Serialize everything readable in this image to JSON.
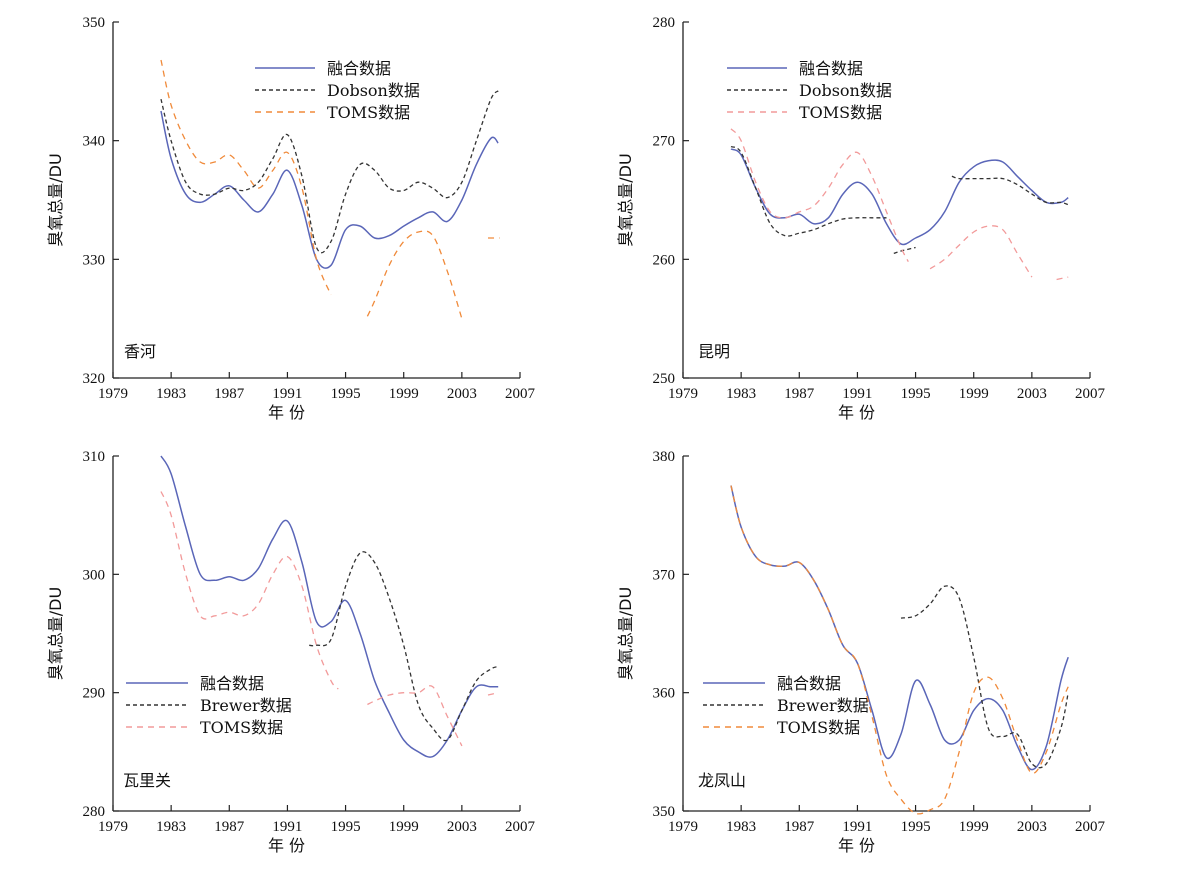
{
  "chart_data": [
    {
      "type": "line",
      "station": "香河",
      "xlabel": "年 份",
      "ylabel": "臭氧总量/DU",
      "xlim": [
        1979,
        2007
      ],
      "ylim": [
        320,
        350
      ],
      "xticks": [
        "1979",
        "1983",
        "1987",
        "1991",
        "1995",
        "1999",
        "2003",
        "2007"
      ],
      "yticks": [
        "320",
        "330",
        "340",
        "350"
      ],
      "legend_position": "top-center",
      "series": [
        {
          "name": "融合数据",
          "color": "#5a66b8",
          "dash": "",
          "x": [
            1982.3,
            1983,
            1984,
            1985,
            1986,
            1987,
            1988,
            1989,
            1990,
            1991,
            1992,
            1993,
            1994,
            1995,
            1996,
            1997,
            1998,
            1999,
            2000,
            2001,
            2002,
            2003,
            2004,
            2005,
            2005.5
          ],
          "y": [
            342.5,
            338.5,
            335.5,
            334.8,
            335.5,
            336.2,
            335,
            334,
            335.5,
            337.5,
            334.5,
            330,
            329.5,
            332.5,
            332.8,
            331.8,
            332,
            332.8,
            333.5,
            334,
            333.2,
            335,
            338,
            340.2,
            339.8
          ]
        },
        {
          "name": "Dobson数据",
          "color": "#333333",
          "dash": "4,3",
          "x": [
            1982.3,
            1983,
            1984,
            1985,
            1986,
            1987,
            1988,
            1989,
            1990,
            1991,
            1992,
            1993,
            1994,
            1995,
            1996,
            1997,
            1998,
            1999,
            2000,
            2001,
            2002,
            2003,
            2004,
            2005,
            2005.5
          ],
          "y": [
            343.5,
            340,
            336.5,
            335.5,
            335.5,
            336,
            335.8,
            336.5,
            338.5,
            340.5,
            337,
            331,
            331.5,
            335.5,
            338,
            337.5,
            336,
            335.8,
            336.5,
            336,
            335.2,
            336.5,
            340,
            343.5,
            344.2
          ]
        },
        {
          "name": "TOMS数据",
          "color": "#f08a3a",
          "dash": "6,5",
          "segments": [
            {
              "x": [
                1982.3,
                1983,
                1984,
                1985,
                1986,
                1987,
                1988,
                1989,
                1990,
                1991,
                1992,
                1993,
                1994
              ],
              "y": [
                346.8,
                343,
                340,
                338.2,
                338.2,
                338.8,
                337.5,
                336,
                337.5,
                339,
                336,
                330,
                327
              ]
            },
            {
              "x": [
                1996.5,
                1997,
                1998,
                1999,
                2000,
                2001,
                2002,
                2003
              ],
              "y": [
                325.2,
                326.5,
                329.5,
                331.5,
                332.3,
                332,
                329,
                325
              ]
            },
            {
              "x": [
                2004.8,
                2005.6
              ],
              "y": [
                331.8,
                331.8
              ]
            }
          ]
        }
      ]
    },
    {
      "type": "line",
      "station": "昆明",
      "xlabel": "年 份",
      "ylabel": "臭氧总量/DU",
      "xlim": [
        1979,
        2007
      ],
      "ylim": [
        250,
        280
      ],
      "xticks": [
        "1979",
        "1983",
        "1987",
        "1991",
        "1995",
        "1999",
        "2003",
        "2007"
      ],
      "yticks": [
        "250",
        "260",
        "270",
        "280"
      ],
      "legend_position": "top-center",
      "series": [
        {
          "name": "融合数据",
          "color": "#5a66b8",
          "dash": "",
          "x": [
            1982.3,
            1983,
            1984,
            1985,
            1986,
            1987,
            1988,
            1989,
            1990,
            1991,
            1992,
            1993,
            1994,
            1995,
            1996,
            1997,
            1998,
            1999,
            2000,
            2001,
            2002,
            2003,
            2004,
            2005,
            2005.5
          ],
          "y": [
            269.3,
            268.8,
            266,
            263.8,
            263.5,
            263.8,
            263,
            263.5,
            265.5,
            266.5,
            265.5,
            263,
            261.3,
            261.8,
            262.5,
            264,
            266.5,
            267.8,
            268.3,
            268.2,
            267,
            265.8,
            264.8,
            264.8,
            265.2
          ]
        },
        {
          "name": "Dobson数据",
          "color": "#333333",
          "dash": "4,3",
          "segments": [
            {
              "x": [
                1982.3,
                1983,
                1984,
                1985,
                1986,
                1987,
                1988,
                1989,
                1990,
                1991,
                1992,
                1993
              ],
              "y": [
                269.5,
                269,
                266,
                263,
                262,
                262.2,
                262.5,
                263,
                263.4,
                263.5,
                263.5,
                263.5
              ]
            },
            {
              "x": [
                1993.5,
                1994,
                1995
              ],
              "y": [
                260.5,
                260.7,
                261
              ]
            },
            {
              "x": [
                1997.5,
                1998,
                1999,
                2000,
                2001,
                2002,
                2003,
                2004,
                2005,
                2005.5
              ],
              "y": [
                267,
                266.8,
                266.8,
                266.8,
                266.8,
                266.3,
                265.5,
                264.8,
                264.8,
                264.6
              ]
            }
          ]
        },
        {
          "name": "TOMS数据",
          "color": "#f29a9a",
          "dash": "6,5",
          "segments": [
            {
              "x": [
                1982.3,
                1983,
                1984,
                1985,
                1986,
                1987,
                1988,
                1989,
                1990,
                1991,
                1992,
                1993,
                1994,
                1994.5
              ],
              "y": [
                271,
                270,
                266.5,
                264,
                263.5,
                264,
                264.5,
                266,
                268,
                269,
                267,
                264,
                261,
                259.8
              ]
            },
            {
              "x": [
                1996,
                1997,
                1998,
                1999,
                2000,
                2001,
                2002,
                2003
              ],
              "y": [
                259.2,
                260,
                261.2,
                262.3,
                262.8,
                262.5,
                260.5,
                258.5
              ]
            },
            {
              "x": [
                2004.7,
                2005.5
              ],
              "y": [
                258.3,
                258.5
              ]
            }
          ]
        }
      ]
    },
    {
      "type": "line",
      "station": "瓦里关",
      "xlabel": "年 份",
      "ylabel": "臭氧总量/DU",
      "xlim": [
        1979,
        2007
      ],
      "ylim": [
        280,
        310
      ],
      "xticks": [
        "1979",
        "1983",
        "1987",
        "1991",
        "1995",
        "1999",
        "2003",
        "2007"
      ],
      "yticks": [
        "280",
        "290",
        "300",
        "310"
      ],
      "legend_position": "bottom-left",
      "series": [
        {
          "name": "融合数据",
          "color": "#5a66b8",
          "dash": "",
          "x": [
            1982.3,
            1983,
            1984,
            1985,
            1986,
            1987,
            1988,
            1989,
            1990,
            1991,
            1992,
            1993,
            1994,
            1995,
            1996,
            1997,
            1998,
            1999,
            2000,
            2001,
            2002,
            2003,
            2004,
            2005,
            2005.5
          ],
          "y": [
            310,
            308.5,
            304,
            300,
            299.5,
            299.8,
            299.5,
            300.5,
            303,
            304.5,
            301,
            296,
            296,
            297.8,
            295,
            291,
            288.3,
            286,
            285,
            284.6,
            286,
            288.5,
            290.5,
            290.5,
            290.5
          ]
        },
        {
          "name": "Brewer数据",
          "color": "#333333",
          "dash": "4,3",
          "segments": [
            {
              "x": [
                1992.5,
                1993,
                1994,
                1995,
                1996,
                1997,
                1998,
                1999,
                2000,
                2001,
                2002,
                2003,
                2004,
                2005,
                2005.5
              ],
              "y": [
                294,
                294,
                294.5,
                299,
                301.8,
                301,
                298,
                294,
                289,
                287,
                286,
                288.5,
                291,
                292,
                292.2
              ]
            }
          ]
        },
        {
          "name": "TOMS数据",
          "color": "#f29a9a",
          "dash": "6,5",
          "segments": [
            {
              "x": [
                1982.3,
                1983,
                1984,
                1985,
                1986,
                1987,
                1988,
                1989,
                1990,
                1991,
                1992,
                1993,
                1994,
                1994.5
              ],
              "y": [
                307,
                305,
                300,
                296.5,
                296.5,
                296.8,
                296.5,
                297.5,
                300,
                301.5,
                299,
                294,
                291,
                290.3
              ]
            },
            {
              "x": [
                1996.5,
                1997,
                1998,
                1999,
                2000,
                2001,
                2002,
                2003
              ],
              "y": [
                289,
                289.3,
                289.8,
                290,
                290,
                290.5,
                288,
                285.5
              ]
            },
            {
              "x": [
                2004.8,
                2005.5
              ],
              "y": [
                289.8,
                290
              ]
            }
          ]
        }
      ]
    },
    {
      "type": "line",
      "station": "龙凤山",
      "xlabel": "年 份",
      "ylabel": "臭氧总量/DU",
      "xlim": [
        1979,
        2007
      ],
      "ylim": [
        350,
        380
      ],
      "xticks": [
        "1979",
        "1983",
        "1987",
        "1991",
        "1995",
        "1999",
        "2003",
        "2007"
      ],
      "yticks": [
        "350",
        "360",
        "370",
        "380"
      ],
      "legend_position": "center-left",
      "series": [
        {
          "name": "融合数据",
          "color": "#5a66b8",
          "dash": "",
          "x": [
            1982.3,
            1983,
            1984,
            1985,
            1986,
            1987,
            1988,
            1989,
            1990,
            1991,
            1992,
            1993,
            1994,
            1995,
            1996,
            1997,
            1998,
            1999,
            2000,
            2001,
            2002,
            2003,
            2004,
            2005,
            2005.5
          ],
          "y": [
            377.5,
            374,
            371.5,
            370.8,
            370.7,
            371,
            369.5,
            367,
            364,
            362.5,
            358.5,
            354.5,
            356.5,
            361,
            359,
            356,
            356,
            358.5,
            359.5,
            358.5,
            355.5,
            353.5,
            355.5,
            361,
            363
          ]
        },
        {
          "name": "Brewer数据",
          "color": "#333333",
          "dash": "4,3",
          "segments": [
            {
              "x": [
                1994,
                1995,
                1996,
                1997,
                1998,
                1999,
                2000,
                2001,
                2002,
                2003,
                2004,
                2005,
                2005.5
              ],
              "y": [
                366.3,
                366.5,
                367.5,
                369,
                368,
                363,
                357,
                356.3,
                356.5,
                354,
                354,
                357,
                360
              ]
            }
          ]
        },
        {
          "name": "TOMS数据",
          "color": "#f08a3a",
          "dash": "6,5",
          "x": [
            1982.3,
            1983,
            1984,
            1985,
            1986,
            1987,
            1988,
            1989,
            1990,
            1991,
            1992,
            1993,
            1994,
            1995,
            1996,
            1997,
            1998,
            1999,
            2000,
            2001,
            2002,
            2003,
            2004,
            2005,
            2005.5
          ],
          "y": [
            377.5,
            374,
            371.5,
            370.8,
            370.7,
            371,
            369.5,
            367,
            364,
            362.5,
            358,
            353,
            351,
            349.8,
            350.1,
            351,
            355,
            360,
            361.3,
            359.5,
            356,
            353.2,
            355,
            359,
            360.5
          ]
        }
      ]
    }
  ]
}
